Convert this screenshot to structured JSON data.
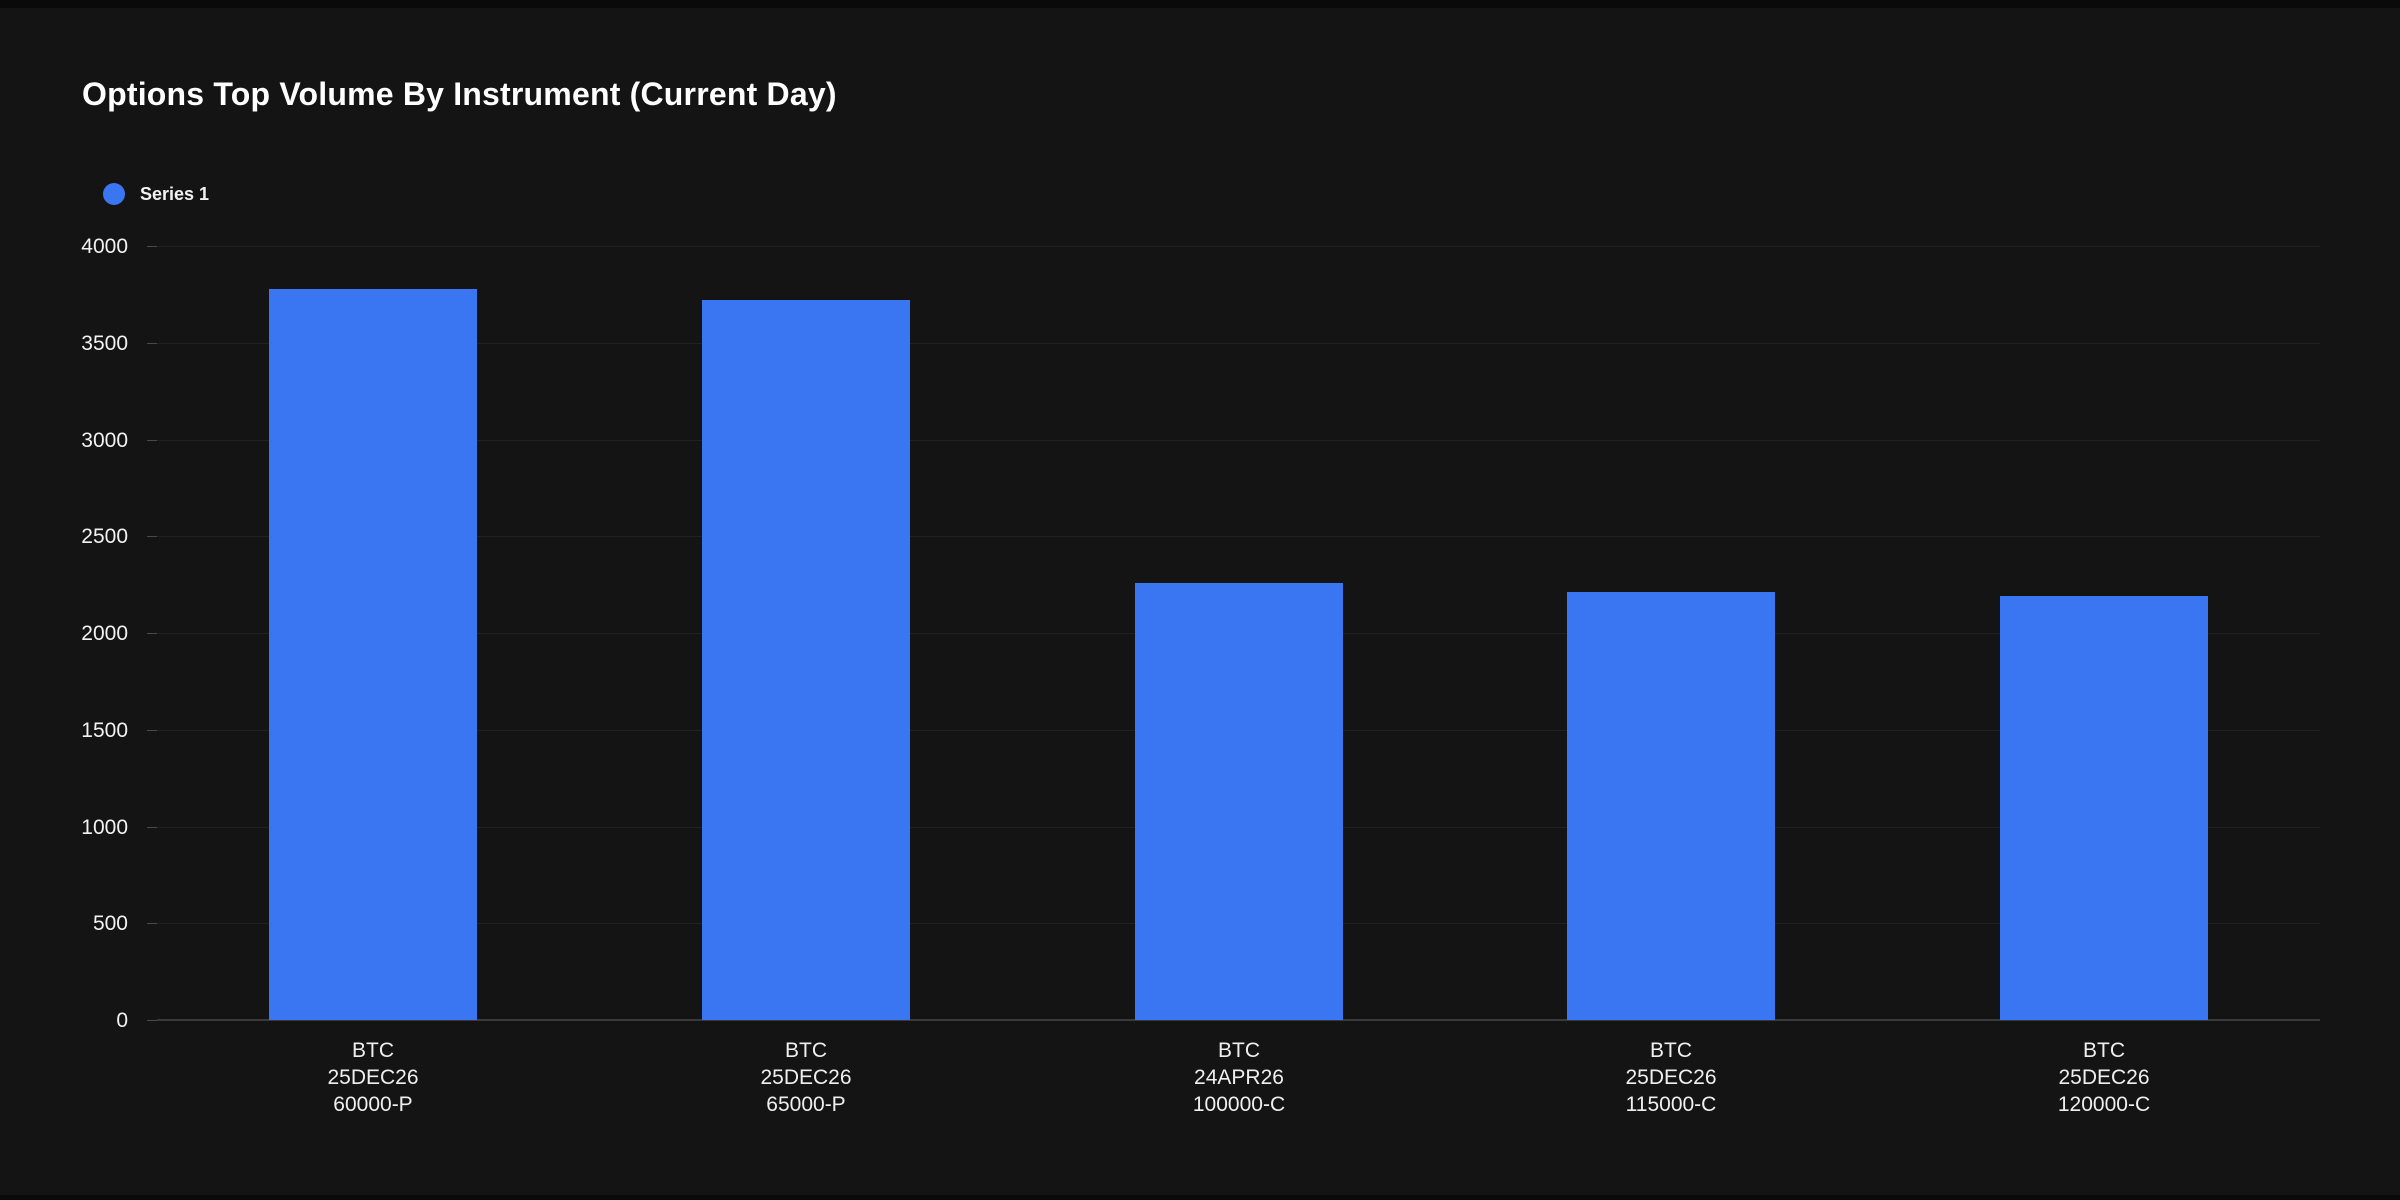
{
  "chart_data": {
    "type": "bar",
    "title": "Options Top Volume By Instrument (Current Day)",
    "legend": [
      {
        "name": "Series 1",
        "color": "#3b76f2"
      }
    ],
    "legend_position": "top-left",
    "categories": [
      [
        "BTC",
        "25DEC26",
        "60000-P"
      ],
      [
        "BTC",
        "25DEC26",
        "65000-P"
      ],
      [
        "BTC",
        "24APR26",
        "100000-C"
      ],
      [
        "BTC",
        "25DEC26",
        "115000-C"
      ],
      [
        "BTC",
        "25DEC26",
        "120000-C"
      ]
    ],
    "series": [
      {
        "name": "Series 1",
        "color": "#3b76f2",
        "values": [
          3780,
          3720,
          2260,
          2210,
          2190
        ]
      }
    ],
    "xlabel": "",
    "ylabel": "",
    "ylim": [
      0,
      4000
    ],
    "ytick_step": 500,
    "ytick_labels": [
      "4000",
      "3500",
      "3000",
      "2500",
      "2000",
      "1500",
      "1000",
      "500",
      "0"
    ],
    "grid": "horizontal",
    "theme": {
      "background": "#141414",
      "grid_color": "#212121",
      "zero_axis_color": "#3a3a3a",
      "tick_color": "#4a4a4a",
      "text_color": "#f2f2f2",
      "title_color": "#ffffff",
      "bar_color": "#3b76f2"
    }
  }
}
